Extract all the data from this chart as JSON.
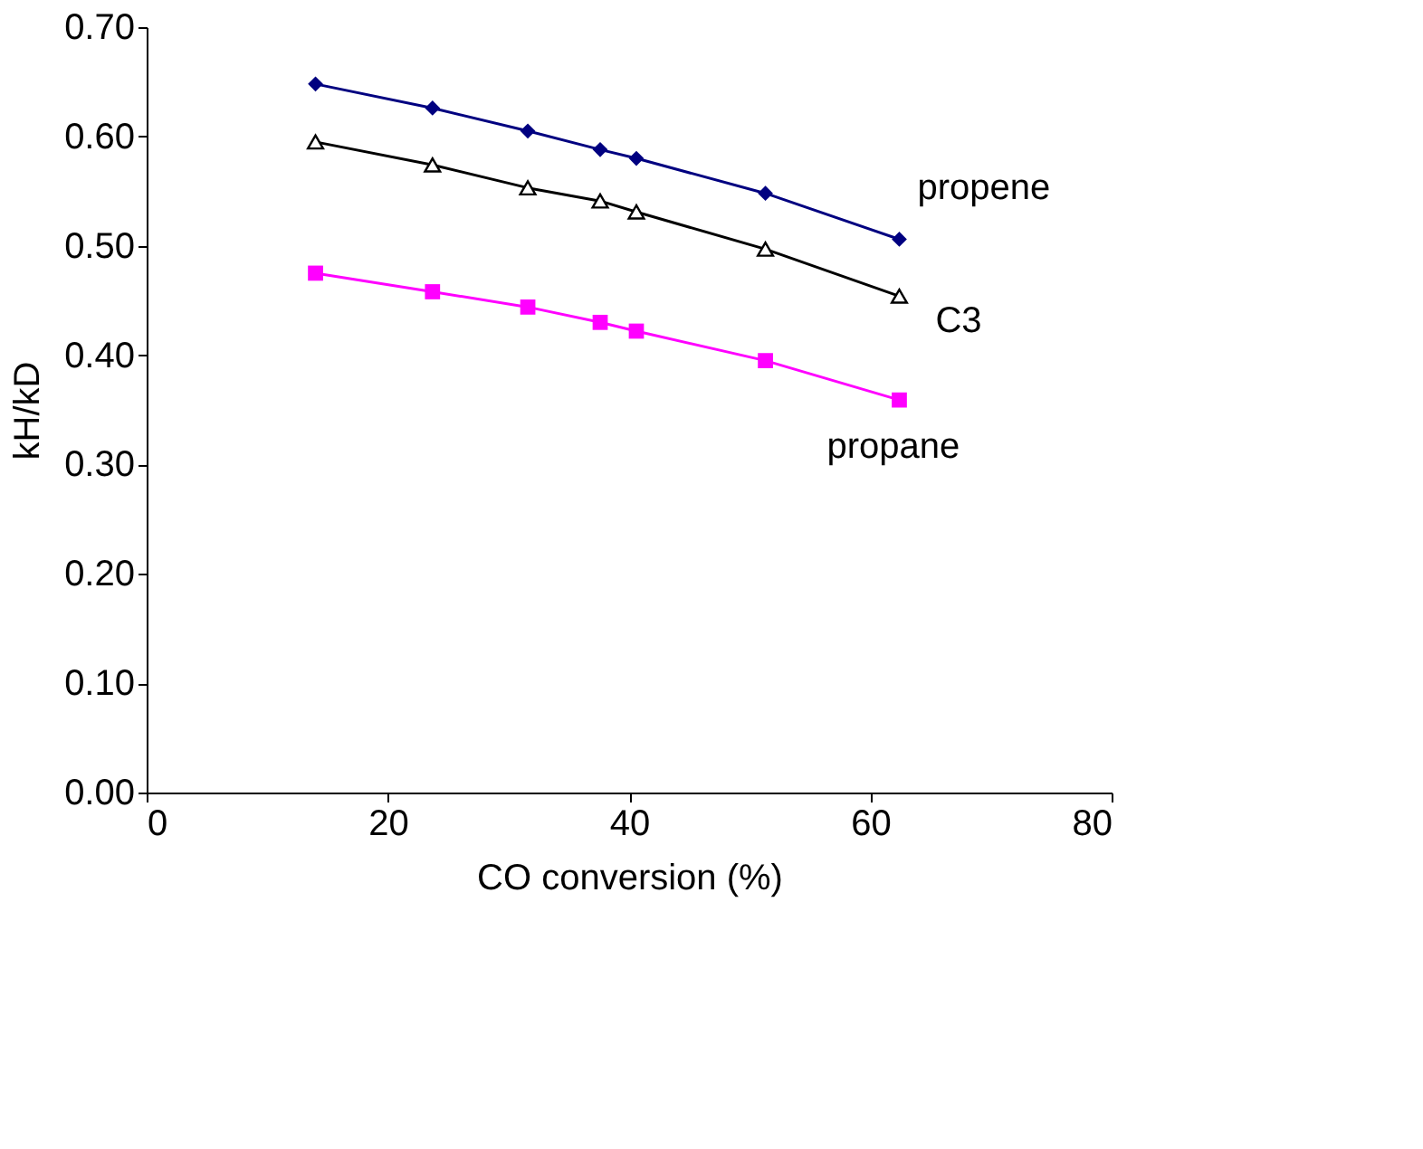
{
  "chart_data": {
    "type": "line",
    "xlabel": "CO conversion (%)",
    "ylabel": "kH/kD",
    "x": [
      14.0,
      23.7,
      31.6,
      37.6,
      40.6,
      51.3,
      62.4
    ],
    "series": [
      {
        "name": "propene",
        "color": "#000080",
        "marker": "diamond",
        "values": [
          0.648,
          0.626,
          0.605,
          0.588,
          0.58,
          0.548,
          0.506
        ]
      },
      {
        "name": "C3",
        "color": "#000000",
        "marker": "triangle",
        "values": [
          0.595,
          0.574,
          0.553,
          0.541,
          0.531,
          0.497,
          0.454
        ]
      },
      {
        "name": "propane",
        "color": "#ff00ff",
        "marker": "square",
        "values": [
          0.475,
          0.458,
          0.444,
          0.43,
          0.422,
          0.395,
          0.359
        ]
      }
    ],
    "xlim": [
      0,
      80
    ],
    "xticks": [
      0,
      20,
      40,
      60,
      80
    ],
    "ylim": [
      0,
      0.7
    ],
    "yticks": [
      {
        "value": 0,
        "label": "0.00"
      },
      {
        "value": 0.1,
        "label": "0.10"
      },
      {
        "value": 0.2,
        "label": "0.20"
      },
      {
        "value": 0.3,
        "label": "0.30"
      },
      {
        "value": 0.4,
        "label": "0.40"
      },
      {
        "value": 0.5,
        "label": "0.50"
      },
      {
        "value": 0.6,
        "label": "0.60"
      },
      {
        "value": 0.7,
        "label": "0.70"
      }
    ],
    "grid": false,
    "line_style": "solid"
  }
}
